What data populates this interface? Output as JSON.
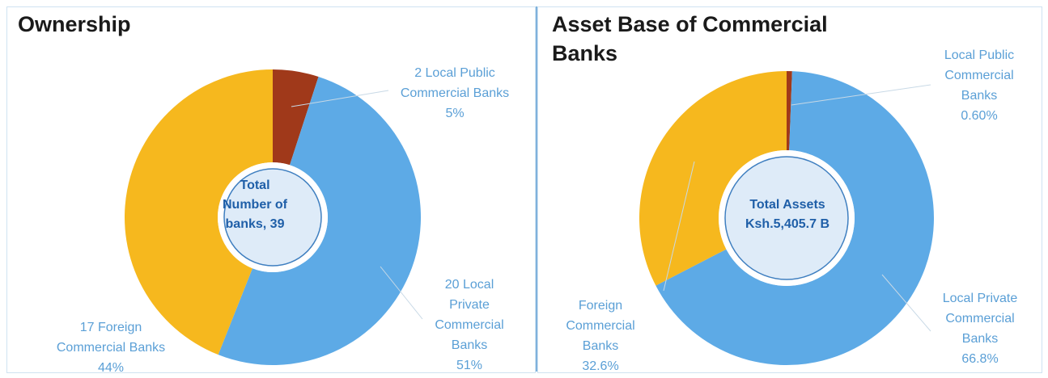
{
  "chart_data": [
    {
      "type": "pie",
      "title": "Ownership",
      "center_label": [
        "Total",
        "Number of",
        "banks, 39"
      ],
      "slices": [
        {
          "name": "Local Public Commercial Banks",
          "count": 2,
          "value": 5,
          "color": "#a0391a",
          "label": [
            "2 Local Public",
            "Commercial Banks",
            "5%"
          ]
        },
        {
          "name": "Local Private Commercial Banks",
          "count": 20,
          "value": 51,
          "color": "#5daae6",
          "label": [
            "20 Local",
            "Private",
            "Commercial",
            "Banks",
            "51%"
          ]
        },
        {
          "name": "Foreign Commercial Banks",
          "count": 17,
          "value": 44,
          "color": "#f6b81e",
          "label": [
            "17 Foreign",
            "Commercial Banks",
            "44%"
          ]
        }
      ]
    },
    {
      "type": "pie",
      "title": "Asset Base of Commercial Banks",
      "center_label": [
        "Total Assets",
        "Ksh.5,405.7 B"
      ],
      "slices": [
        {
          "name": "Local Public Commercial Banks",
          "value": 0.6,
          "color": "#a0391a",
          "label": [
            "Local Public",
            "Commercial",
            "Banks",
            "0.60%"
          ]
        },
        {
          "name": "Local Private Commercial Banks",
          "value": 66.8,
          "color": "#5daae6",
          "label": [
            "Local Private",
            "Commercial",
            "Banks",
            "66.8%"
          ]
        },
        {
          "name": "Foreign Commercial Banks",
          "value": 32.6,
          "color": "#f6b81e",
          "label": [
            "Foreign",
            "Commercial",
            "Banks",
            "32.6%"
          ]
        }
      ]
    }
  ]
}
